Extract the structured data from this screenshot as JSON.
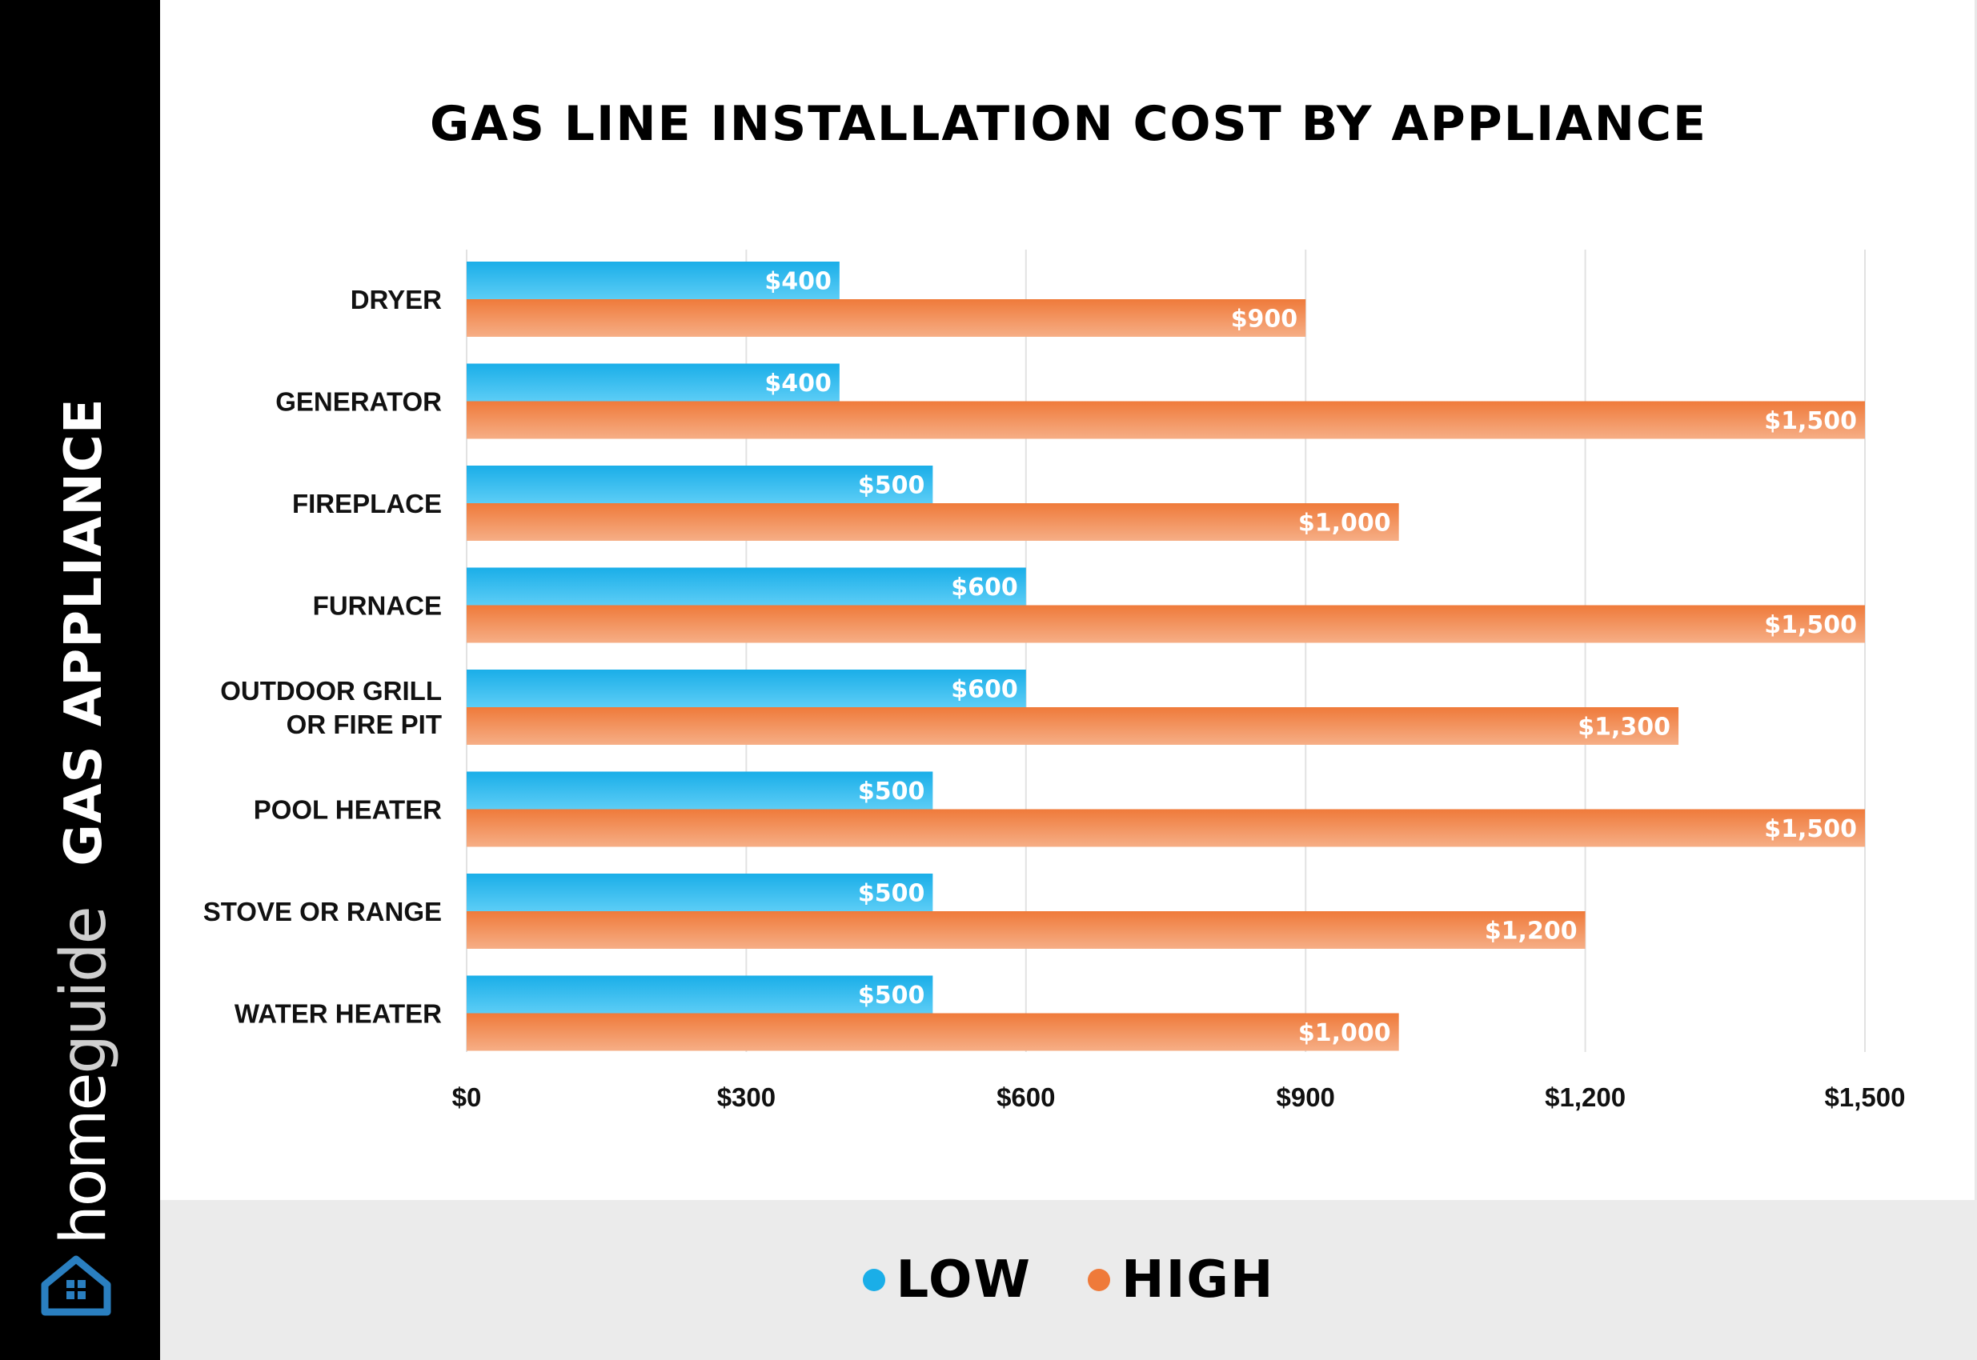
{
  "colors": {
    "low": "#1aaee8",
    "low_light": "#5ccdf6",
    "high": "#ef7a3a",
    "high_light": "#f6ae86",
    "grid": "#e2e2e2"
  },
  "sidebar": {
    "axis_title": "GAS APPLIANCE",
    "brand_part1": "home",
    "brand_part2": "guide",
    "logo_icon": "house-icon"
  },
  "chart_data": {
    "type": "bar",
    "orientation": "horizontal",
    "title": "GAS LINE INSTALLATION COST BY APPLIANCE",
    "ylabel": "GAS APPLIANCE",
    "categories": [
      "DRYER",
      "GENERATOR",
      "FIREPLACE",
      "FURNACE",
      "OUTDOOR GRILL\nOR FIRE PIT",
      "POOL HEATER",
      "STOVE OR RANGE",
      "WATER HEATER"
    ],
    "series": [
      {
        "name": "LOW",
        "values": [
          400,
          400,
          500,
          600,
          600,
          500,
          500,
          500
        ],
        "labels": [
          "$400",
          "$400",
          "$500",
          "$600",
          "$600",
          "$500",
          "$500",
          "$500"
        ]
      },
      {
        "name": "HIGH",
        "values": [
          900,
          1500,
          1000,
          1500,
          1300,
          1500,
          1200,
          1000
        ],
        "labels": [
          "$900",
          "$1,500",
          "$1,000",
          "$1,500",
          "$1,300",
          "$1,500",
          "$1,200",
          "$1,000"
        ]
      }
    ],
    "xlim": [
      0,
      1500
    ],
    "xticks": [
      0,
      300,
      600,
      900,
      1200,
      1500
    ],
    "xtick_labels": [
      "$0",
      "$300",
      "$600",
      "$900",
      "$1,200",
      "$1,500"
    ],
    "grid": true,
    "legend_position": "bottom"
  }
}
